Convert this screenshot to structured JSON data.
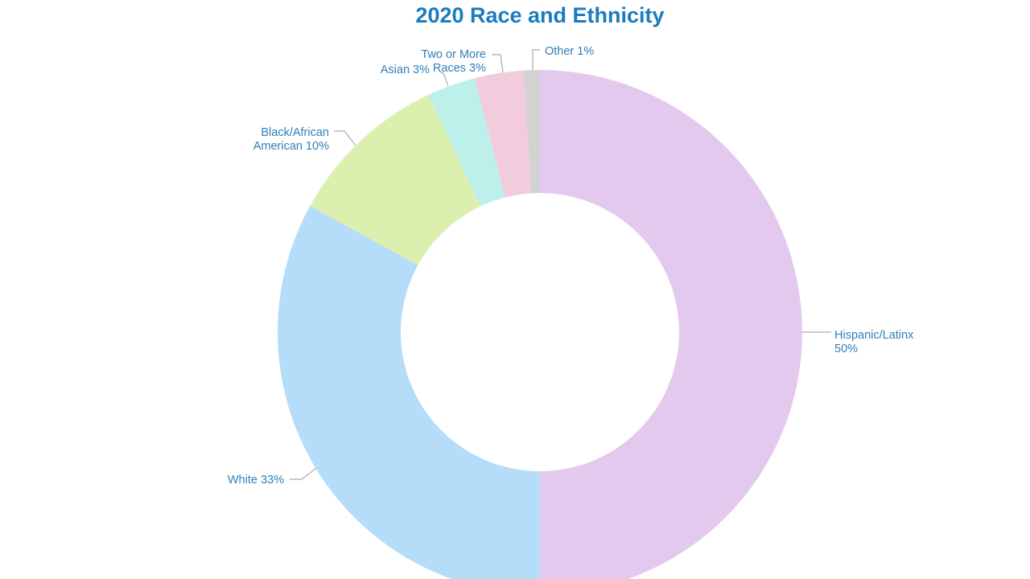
{
  "chart_data": {
    "type": "pie",
    "subtype": "donut",
    "title": "2020 Race and Ethnicity",
    "categories": [
      "Hispanic/Latinx",
      "White",
      "Black/African American",
      "Asian",
      "Two or More Races",
      "Other"
    ],
    "values": [
      50,
      33,
      10,
      3,
      3,
      1
    ],
    "unit": "%",
    "colors": [
      "#e4c9ef",
      "#b5dcf9",
      "#dbf0ae",
      "#bdefeb",
      "#f2cbdc",
      "#d3d3d3"
    ],
    "labels": [
      {
        "line1": "Hispanic/Latinx",
        "line2": "50%"
      },
      {
        "line1": "White 33%",
        "line2": ""
      },
      {
        "line1": "Black/African",
        "line2": "American 10%"
      },
      {
        "line1": "Asian 3%",
        "line2": ""
      },
      {
        "line1": "Two or More",
        "line2": "Races 3%"
      },
      {
        "line1": "Other 1%",
        "line2": ""
      }
    ],
    "legend": "none (leader-line labels)",
    "title_color": "#1a7bbf",
    "label_color": "#2f7fb8"
  }
}
